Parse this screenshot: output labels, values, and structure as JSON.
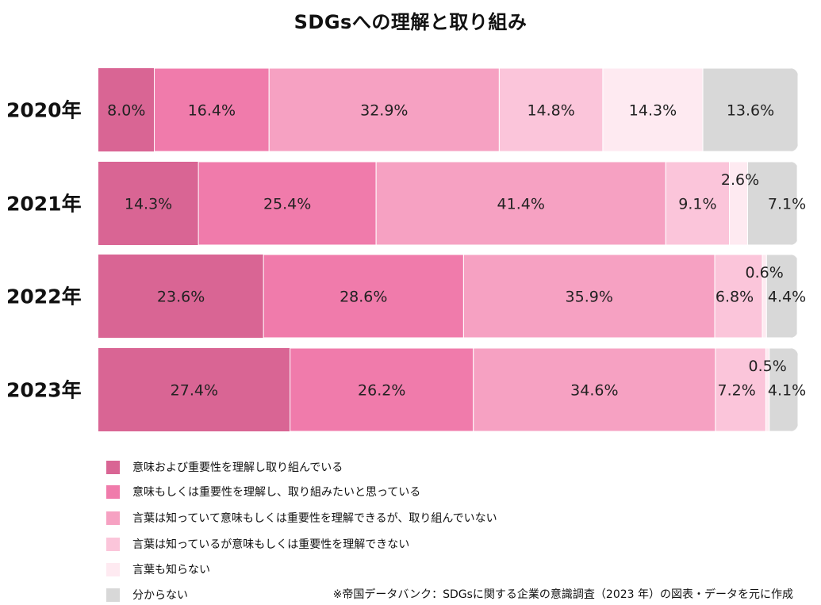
{
  "chart_data": {
    "type": "bar",
    "orientation": "horizontal",
    "stacked": true,
    "title": "SDGsへの理解と取り組み",
    "categories": [
      "2020年",
      "2021年",
      "2022年",
      "2023年"
    ],
    "series": [
      {
        "name": "意味および重要性を理解し取り組んでいる",
        "color": "#d96594",
        "values": [
          8.0,
          14.3,
          23.6,
          27.4
        ],
        "labels": [
          "8.0%",
          "14.3%",
          "23.6%",
          "27.4%"
        ]
      },
      {
        "name": "意味もしくは重要性を理解し、取り組みたいと思っている",
        "color": "#f07bab",
        "values": [
          16.4,
          25.4,
          28.6,
          26.2
        ],
        "labels": [
          "16.4%",
          "25.4%",
          "28.6%",
          "26.2%"
        ]
      },
      {
        "name": "言葉は知っていて意味もしくは重要性を理解できるが、取り組んでいない",
        "color": "#f6a1c2",
        "values": [
          32.9,
          41.4,
          35.9,
          34.6
        ],
        "labels": [
          "32.9%",
          "41.4%",
          "35.9%",
          "34.6%"
        ]
      },
      {
        "name": "言葉は知っているが意味もしくは重要性を理解できない",
        "color": "#fbc5da",
        "values": [
          14.8,
          9.1,
          6.8,
          7.2
        ],
        "labels": [
          "14.8%",
          "9.1%",
          "6.8%",
          "7.2%"
        ]
      },
      {
        "name": "言葉も知らない",
        "color": "#feeaf1",
        "values": [
          14.3,
          2.6,
          0.6,
          0.5
        ],
        "labels": [
          "14.3%",
          "2.6%",
          "0.6%",
          "0.5%"
        ]
      },
      {
        "name": "分からない",
        "color": "#d8d8d8",
        "values": [
          13.6,
          7.1,
          4.4,
          4.1
        ],
        "labels": [
          "13.6%",
          "7.1%",
          "4.4%",
          "4.1%"
        ]
      }
    ],
    "xlim": [
      0,
      100
    ],
    "legend_position": "bottom-left"
  },
  "source_note": "※帝国データバンク：SDGsに関する企業の意識調査（2023 年）の図表・データを元に作成"
}
